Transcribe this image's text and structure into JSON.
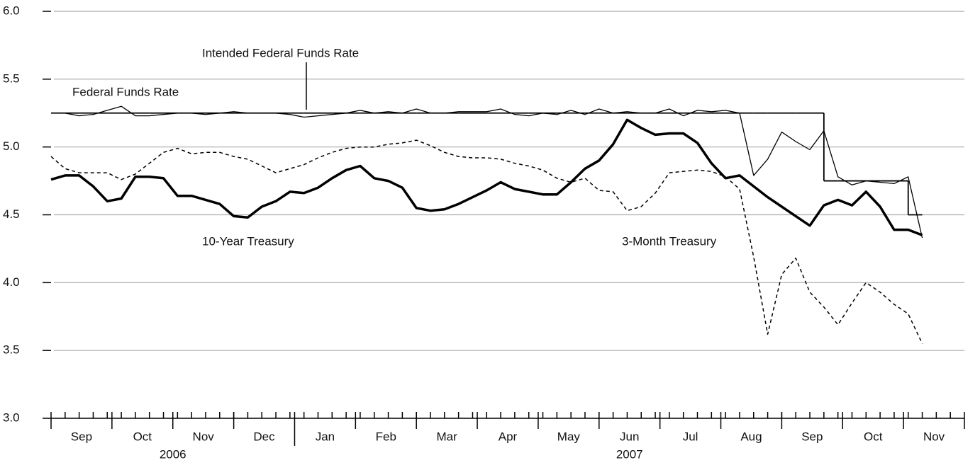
{
  "chart_data": {
    "type": "line",
    "x_axis": {
      "years": [
        {
          "label": "2006",
          "months": [
            "Sep",
            "Oct",
            "Nov",
            "Dec"
          ]
        },
        {
          "label": "2007",
          "months": [
            "Jan",
            "Feb",
            "Mar",
            "Apr",
            "May",
            "Jun",
            "Jul",
            "Aug",
            "Sep",
            "Oct",
            "Nov"
          ]
        }
      ]
    },
    "ylim": [
      3,
      6
    ],
    "yticks": [
      {
        "value": 3,
        "label": "3.0"
      },
      3.5,
      {
        "value": 4,
        "label": "4.0"
      },
      4.5,
      {
        "value": 5,
        "label": "5.0"
      },
      5.5,
      {
        "value": 6,
        "label": "6.0"
      }
    ],
    "grid": true,
    "series": [
      {
        "name": "Intended Federal Funds Rate",
        "color": "#000000",
        "style": "step",
        "values": [
          5.25,
          5.25,
          5.25,
          5.25,
          5.25,
          5.25,
          5.25,
          5.25,
          5.25,
          5.25,
          5.25,
          5.25,
          5.25,
          5.25,
          5.25,
          5.25,
          5.25,
          5.25,
          5.25,
          5.25,
          5.25,
          5.25,
          5.25,
          5.25,
          5.25,
          5.25,
          5.25,
          5.25,
          5.25,
          5.25,
          5.25,
          5.25,
          5.25,
          5.25,
          5.25,
          5.25,
          5.25,
          5.25,
          5.25,
          5.25,
          5.25,
          5.25,
          5.25,
          5.25,
          5.25,
          5.25,
          5.25,
          5.25,
          5.25,
          5.25,
          5.25,
          5.25,
          5.25,
          5.25,
          5.25,
          5.25,
          4.75,
          4.75,
          4.75,
          4.75,
          4.75,
          4.75,
          4.5
        ]
      },
      {
        "name": "Federal Funds Rate",
        "color": "#000000",
        "style": "thin",
        "values": [
          5.25,
          5.25,
          5.23,
          5.24,
          5.27,
          5.3,
          5.23,
          5.23,
          5.24,
          5.25,
          5.25,
          5.24,
          5.25,
          5.26,
          5.25,
          5.25,
          5.25,
          5.24,
          5.22,
          5.23,
          5.24,
          5.25,
          5.27,
          5.25,
          5.26,
          5.25,
          5.28,
          5.25,
          5.25,
          5.26,
          5.26,
          5.26,
          5.28,
          5.24,
          5.23,
          5.25,
          5.24,
          5.27,
          5.24,
          5.28,
          5.25,
          5.26,
          5.25,
          5.25,
          5.28,
          5.23,
          5.27,
          5.26,
          5.27,
          5.25,
          4.79,
          4.91,
          5.11,
          5.04,
          4.98,
          5.12,
          4.78,
          4.72,
          4.75,
          4.74,
          4.73,
          4.78,
          4.33
        ]
      },
      {
        "name": "10-Year Treasury",
        "color": "#000000",
        "style": "thick",
        "values": [
          4.76,
          4.79,
          4.79,
          4.71,
          4.6,
          4.62,
          4.78,
          4.78,
          4.77,
          4.64,
          4.64,
          4.61,
          4.58,
          4.49,
          4.48,
          4.56,
          4.6,
          4.67,
          4.66,
          4.7,
          4.77,
          4.83,
          4.86,
          4.77,
          4.75,
          4.7,
          4.55,
          4.53,
          4.54,
          4.58,
          4.63,
          4.68,
          4.74,
          4.69,
          4.67,
          4.65,
          4.65,
          4.74,
          4.84,
          4.9,
          5.02,
          5.2,
          5.14,
          5.09,
          5.1,
          5.1,
          5.03,
          4.88,
          4.77,
          4.79,
          4.71,
          4.63,
          4.56,
          4.49,
          4.42,
          4.57,
          4.61,
          4.57,
          4.67,
          4.56,
          4.39,
          4.39,
          4.35
        ]
      },
      {
        "name": "3-Month Treasury",
        "color": "#000000",
        "style": "dashed",
        "values": [
          4.93,
          4.84,
          4.81,
          4.81,
          4.81,
          4.76,
          4.8,
          4.88,
          4.96,
          4.99,
          4.95,
          4.96,
          4.96,
          4.93,
          4.91,
          4.86,
          4.81,
          4.84,
          4.87,
          4.92,
          4.96,
          4.99,
          5.0,
          5.0,
          5.02,
          5.03,
          5.05,
          5.01,
          4.96,
          4.93,
          4.92,
          4.92,
          4.91,
          4.88,
          4.86,
          4.83,
          4.77,
          4.74,
          4.77,
          4.68,
          4.67,
          4.53,
          4.56,
          4.66,
          4.81,
          4.82,
          4.83,
          4.82,
          4.78,
          4.69,
          4.19,
          3.62,
          4.06,
          4.18,
          3.93,
          3.82,
          3.69,
          3.85,
          4.0,
          3.93,
          3.84,
          3.77,
          3.55
        ]
      }
    ]
  }
}
